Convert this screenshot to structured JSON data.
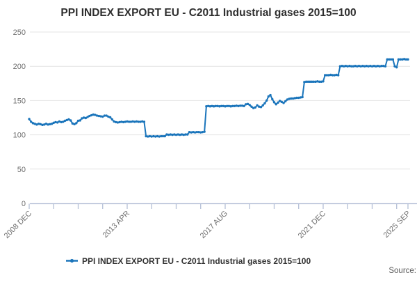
{
  "title": "PPI INDEX EXPORT EU - C2011 Industrial gases 2015=100",
  "legend": {
    "label": "PPI INDEX EXPORT EU - C2011 Industrial gases 2015=100"
  },
  "source_label": "Source:",
  "colors": {
    "line": "#1b75bb",
    "grid": "#e4e4e4",
    "axis": "#b4bfd6",
    "tick_label": "#6e6e6e",
    "title": "#2e2e2e",
    "legend_text": "#333333",
    "source": "#5a5a5a",
    "background": "#ffffff"
  },
  "chart_data": {
    "type": "line",
    "title": "PPI INDEX EXPORT EU - C2011 Industrial gases 2015=100",
    "frequency": "monthly",
    "x_start": "2008 DEC",
    "x_end": "2025 SEP",
    "ylim": [
      0,
      250
    ],
    "yticks": [
      0,
      50,
      100,
      150,
      200,
      250
    ],
    "grid": "horizontal",
    "legend_position": "bottom-center",
    "x_axis": {
      "minor_tick_every_months": 13,
      "tick_labels": [
        {
          "label": "2008 DEC",
          "month_index": 0
        },
        {
          "label": "2013 APR",
          "month_index": 52
        },
        {
          "label": "2017 AUG",
          "month_index": 104
        },
        {
          "label": "2021 DEC",
          "month_index": 156
        },
        {
          "label": "2025 SEP",
          "month_index": 201
        }
      ]
    },
    "series": [
      {
        "name": "PPI INDEX EXPORT EU - C2011 Industrial gases 2015=100",
        "values": [
          123,
          119,
          117,
          116,
          115,
          116,
          115.5,
          114.5,
          115,
          116,
          115,
          115.5,
          116,
          117.5,
          118.5,
          118,
          119.5,
          118.5,
          119,
          120.5,
          121.5,
          122.5,
          121,
          116.5,
          115.5,
          117,
          120.5,
          121,
          124,
          125,
          124.5,
          126,
          127.5,
          128.5,
          129.5,
          129,
          128,
          127.5,
          127,
          126.5,
          128,
          128,
          126.5,
          125.5,
          122.5,
          119.5,
          118.5,
          118,
          118.5,
          119,
          118.5,
          119,
          119.5,
          119,
          119,
          119.5,
          119,
          119.5,
          119,
          119,
          119.5,
          119,
          98,
          97.5,
          98,
          97.5,
          98,
          97.5,
          98,
          97.5,
          98,
          98,
          98,
          100.5,
          100,
          100.5,
          100,
          100.5,
          100,
          100.5,
          100,
          100.5,
          100,
          100.5,
          100.5,
          104,
          103.5,
          104,
          103.5,
          104,
          104,
          103.5,
          104,
          104.5,
          141.5,
          142,
          141.5,
          142,
          141.5,
          142,
          142,
          141.5,
          142,
          142,
          141.5,
          142,
          142,
          141.5,
          142,
          142,
          142.5,
          142,
          142.5,
          142.5,
          142,
          144.5,
          145,
          143.5,
          141,
          139,
          140,
          143,
          141,
          140.5,
          143,
          146,
          150,
          156,
          158,
          152,
          147.5,
          144.5,
          147,
          149.5,
          148,
          146.5,
          149,
          151.5,
          152.5,
          153,
          153,
          153.5,
          154,
          154,
          154.5,
          155,
          177,
          177.5,
          177.5,
          177.5,
          177.5,
          177.5,
          177.5,
          178,
          177.5,
          177.5,
          178,
          187,
          187,
          187,
          187.5,
          187,
          187,
          187.5,
          187,
          200,
          200.5,
          200,
          200.5,
          200,
          200.5,
          200,
          200,
          200.5,
          200,
          200.5,
          200,
          200.5,
          200,
          200.5,
          200,
          200.5,
          200,
          200.5,
          200,
          200.5,
          200,
          200.5,
          200.5,
          200,
          210,
          210,
          210,
          210,
          200,
          198.5,
          210,
          210,
          210,
          210.5,
          210,
          210
        ]
      }
    ]
  }
}
